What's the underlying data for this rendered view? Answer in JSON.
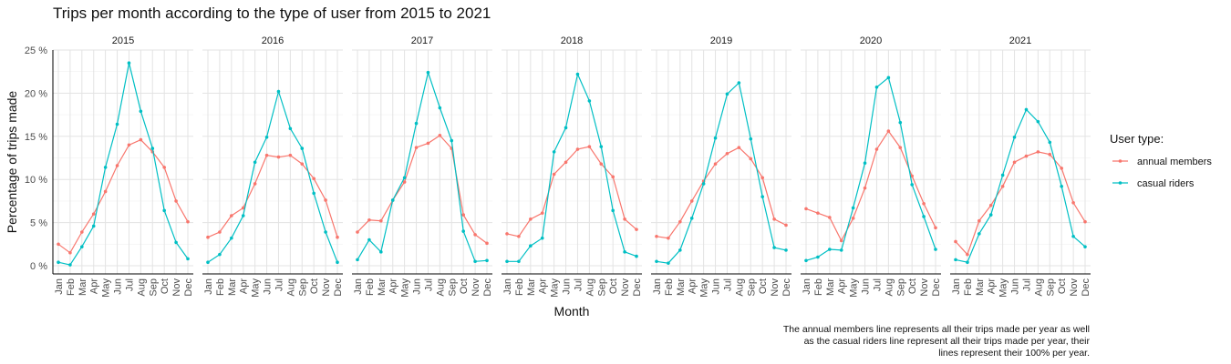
{
  "chart_data": {
    "type": "line",
    "title": "Trips per month according to the type of user from 2015 to 2021",
    "xlabel": "Month",
    "ylabel": "Percentage of trips made",
    "ylim": [
      0,
      25
    ],
    "yticks": [
      0,
      5,
      10,
      15,
      20,
      25
    ],
    "ytick_labels": [
      "0 %",
      "5 %",
      "10 %",
      "15 %",
      "20 %",
      "25 %"
    ],
    "grid": true,
    "facets": [
      "2015",
      "2016",
      "2017",
      "2018",
      "2019",
      "2020",
      "2021"
    ],
    "categories": [
      "Jan",
      "Feb",
      "Mar",
      "Apr",
      "May",
      "Jun",
      "Jul",
      "Aug",
      "Sep",
      "Oct",
      "Nov",
      "Dec"
    ],
    "legend": {
      "title": "User type:",
      "position": "right",
      "entries": [
        "annual members",
        "casual riders"
      ]
    },
    "colors": {
      "annual members": "#F8766D",
      "casual riders": "#00BFC4"
    },
    "caption": [
      "The annual members line represents all their trips made per year as well",
      "as the casual riders line represent all their trips made per year, their",
      "lines represent their 100% per year."
    ],
    "series": [
      {
        "name": "annual members",
        "facets": {
          "2015": [
            2.5,
            1.5,
            3.9,
            6.0,
            8.6,
            11.6,
            14.0,
            14.6,
            13.2,
            11.4,
            7.5,
            5.1
          ],
          "2016": [
            3.3,
            3.9,
            5.8,
            6.7,
            9.5,
            12.8,
            12.6,
            12.8,
            11.8,
            10.1,
            7.6,
            3.3
          ],
          "2017": [
            3.9,
            5.3,
            5.2,
            7.6,
            9.7,
            13.7,
            14.2,
            15.1,
            13.6,
            5.9,
            3.6,
            2.6
          ],
          "2018": [
            3.7,
            3.4,
            5.4,
            6.1,
            10.6,
            12.0,
            13.5,
            13.8,
            11.8,
            10.3,
            5.4,
            4.2
          ],
          "2019": [
            3.4,
            3.2,
            5.1,
            7.5,
            9.8,
            11.8,
            13.0,
            13.7,
            12.4,
            10.2,
            5.4,
            4.7
          ],
          "2020": [
            6.6,
            6.1,
            5.6,
            2.9,
            5.5,
            9.0,
            13.5,
            15.6,
            13.7,
            10.4,
            7.2,
            4.4
          ],
          "2021": [
            2.8,
            1.3,
            5.2,
            7.0,
            9.2,
            12.0,
            12.7,
            13.2,
            12.9,
            11.3,
            7.3,
            5.1
          ]
        }
      },
      {
        "name": "casual riders",
        "facets": {
          "2015": [
            0.4,
            0.1,
            2.2,
            4.6,
            11.4,
            16.4,
            23.5,
            17.9,
            13.6,
            6.4,
            2.7,
            0.8
          ],
          "2016": [
            0.4,
            1.3,
            3.2,
            5.8,
            12.0,
            14.9,
            20.2,
            15.9,
            13.6,
            8.4,
            3.9,
            0.4
          ],
          "2017": [
            0.7,
            3.0,
            1.6,
            7.6,
            10.2,
            16.5,
            22.4,
            18.3,
            14.5,
            4.0,
            0.5,
            0.6
          ],
          "2018": [
            0.5,
            0.5,
            2.3,
            3.2,
            13.2,
            16.0,
            22.2,
            19.1,
            13.8,
            6.4,
            1.6,
            1.1
          ],
          "2019": [
            0.5,
            0.3,
            1.8,
            5.5,
            9.5,
            14.8,
            19.9,
            21.2,
            14.7,
            8.0,
            2.1,
            1.8
          ],
          "2020": [
            0.6,
            1.0,
            1.9,
            1.8,
            6.7,
            11.9,
            20.7,
            21.8,
            16.6,
            9.4,
            5.7,
            1.9
          ],
          "2021": [
            0.7,
            0.4,
            3.7,
            5.9,
            10.5,
            14.9,
            18.1,
            16.7,
            14.3,
            9.2,
            3.4,
            2.2
          ]
        }
      }
    ]
  }
}
